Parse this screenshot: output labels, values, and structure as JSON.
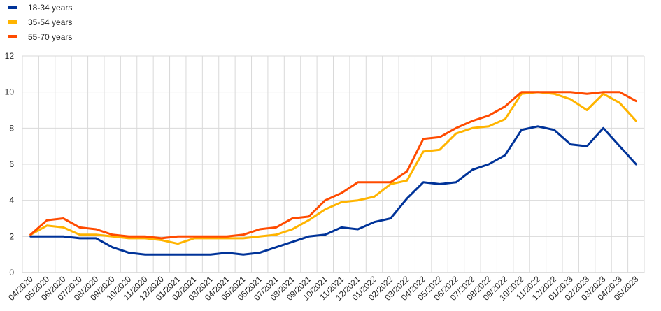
{
  "chart_data": {
    "type": "line",
    "title": "",
    "xlabel": "",
    "ylabel": "",
    "ylim": [
      0,
      12
    ],
    "yticks": [
      0,
      2,
      4,
      6,
      8,
      10,
      12
    ],
    "grid": "horizontal and vertical",
    "legend_position": "top-left",
    "x": [
      "04/2020",
      "05/2020",
      "06/2020",
      "07/2020",
      "08/2020",
      "09/2020",
      "10/2020",
      "11/2020",
      "12/2020",
      "01/2021",
      "02/2021",
      "03/2021",
      "04/2021",
      "05/2021",
      "06/2021",
      "07/2021",
      "08/2021",
      "09/2021",
      "10/2021",
      "11/2021",
      "12/2021",
      "01/2022",
      "02/2022",
      "03/2022",
      "04/2022",
      "05/2022",
      "06/2022",
      "07/2022",
      "08/2022",
      "09/2022",
      "10/2022",
      "11/2022",
      "12/2022",
      "01/2023",
      "02/2023",
      "03/2023",
      "04/2023",
      "05/2023"
    ],
    "series": [
      {
        "name": "18-34 years",
        "color": "#003399",
        "values": [
          2.0,
          2.0,
          2.0,
          1.9,
          1.9,
          1.4,
          1.1,
          1.0,
          1.0,
          1.0,
          1.0,
          1.0,
          1.1,
          1.0,
          1.1,
          1.4,
          1.7,
          2.0,
          2.1,
          2.5,
          2.4,
          2.8,
          3.0,
          4.1,
          5.0,
          4.9,
          5.0,
          5.7,
          6.0,
          6.5,
          7.9,
          8.1,
          7.9,
          7.1,
          7.0,
          8.0,
          7.0,
          6.0
        ]
      },
      {
        "name": "35-54 years",
        "color": "#FFB400",
        "values": [
          2.1,
          2.6,
          2.5,
          2.1,
          2.1,
          2.0,
          1.9,
          1.9,
          1.8,
          1.6,
          1.9,
          1.9,
          1.9,
          1.9,
          2.0,
          2.1,
          2.4,
          2.9,
          3.5,
          3.9,
          4.0,
          4.2,
          4.9,
          5.1,
          6.7,
          6.8,
          7.7,
          8.0,
          8.1,
          8.5,
          9.9,
          10.0,
          9.9,
          9.6,
          9.0,
          9.9,
          9.4,
          8.4
        ]
      },
      {
        "name": "55-70 years",
        "color": "#FF4B00",
        "values": [
          2.1,
          2.9,
          3.0,
          2.5,
          2.4,
          2.1,
          2.0,
          2.0,
          1.9,
          2.0,
          2.0,
          2.0,
          2.0,
          2.1,
          2.4,
          2.5,
          3.0,
          3.1,
          4.0,
          4.4,
          5.0,
          5.0,
          5.0,
          5.6,
          7.4,
          7.5,
          8.0,
          8.4,
          8.7,
          9.2,
          10.0,
          10.0,
          10.0,
          10.0,
          9.9,
          10.0,
          10.0,
          9.5
        ]
      }
    ]
  }
}
